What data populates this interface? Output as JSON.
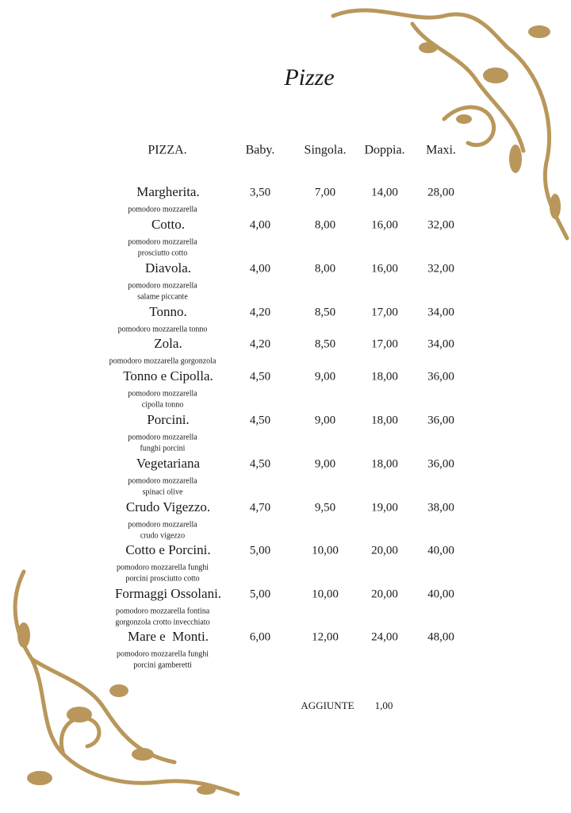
{
  "title": "Pizze",
  "header": [
    "PIZZA.",
    "Baby.",
    "Singola.",
    "Doppia.",
    "Maxi."
  ],
  "rows": [
    {
      "name": "Margherita.",
      "ingredients": [
        "pomodoro mozzarella"
      ],
      "prices": [
        "3,50",
        "7,00",
        "14,00",
        "28,00"
      ]
    },
    {
      "name": "Cotto.",
      "ingredients": [
        "pomodoro mozzarella",
        "prosciutto cotto"
      ],
      "prices": [
        "4,00",
        "8,00",
        "16,00",
        "32,00"
      ]
    },
    {
      "name": "Diavola.",
      "ingredients": [
        "pomodoro mozzarella",
        "salame piccante"
      ],
      "prices": [
        "4,00",
        "8,00",
        "16,00",
        "32,00"
      ]
    },
    {
      "name": "Tonno.",
      "ingredients": [
        "pomodoro mozzarella tonno"
      ],
      "prices": [
        "4,20",
        "8,50",
        "17,00",
        "34,00"
      ]
    },
    {
      "name": "Zola.",
      "ingredients": [
        "pomodoro mozzarella gorgonzola"
      ],
      "prices": [
        "4,20",
        "8,50",
        "17,00",
        "34,00"
      ]
    },
    {
      "name": "Tonno e Cipolla.",
      "ingredients": [
        "pomodoro mozzarella",
        "cipolla tonno"
      ],
      "prices": [
        "4,50",
        "9,00",
        "18,00",
        "36,00"
      ]
    },
    {
      "name": "Porcini.",
      "ingredients": [
        "pomodoro mozzarella",
        "funghi porcini"
      ],
      "prices": [
        "4,50",
        "9,00",
        "18,00",
        "36,00"
      ]
    },
    {
      "name": "Vegetariana",
      "ingredients": [
        "pomodoro mozzarella",
        "spinaci olive"
      ],
      "prices": [
        "4,50",
        "9,00",
        "18,00",
        "36,00"
      ]
    },
    {
      "name": "Crudo Vigezzo.",
      "ingredients": [
        "pomodoro mozzarella",
        "crudo vigezzo"
      ],
      "prices": [
        "4,70",
        "9,50",
        "19,00",
        "38,00"
      ]
    },
    {
      "name": "Cotto e Porcini.",
      "ingredients": [
        "pomodoro mozzarella funghi",
        "porcini prosciutto cotto"
      ],
      "prices": [
        "5,00",
        "10,00",
        "20,00",
        "40,00"
      ]
    },
    {
      "name": "Formaggi Ossolani.",
      "ingredients": [
        "pomodoro mozzarella fontina",
        "gorgonzola crotto invecchiato"
      ],
      "prices": [
        "5,00",
        "10,00",
        "20,00",
        "40,00"
      ]
    },
    {
      "name": "Mare e  Monti.",
      "ingredients": [
        "pomodoro mozzarella funghi",
        "porcini gamberetti"
      ],
      "prices": [
        "6,00",
        "12,00",
        "24,00",
        "48,00"
      ]
    }
  ],
  "extra": {
    "label": "AGGIUNTE",
    "price": "1,00"
  }
}
